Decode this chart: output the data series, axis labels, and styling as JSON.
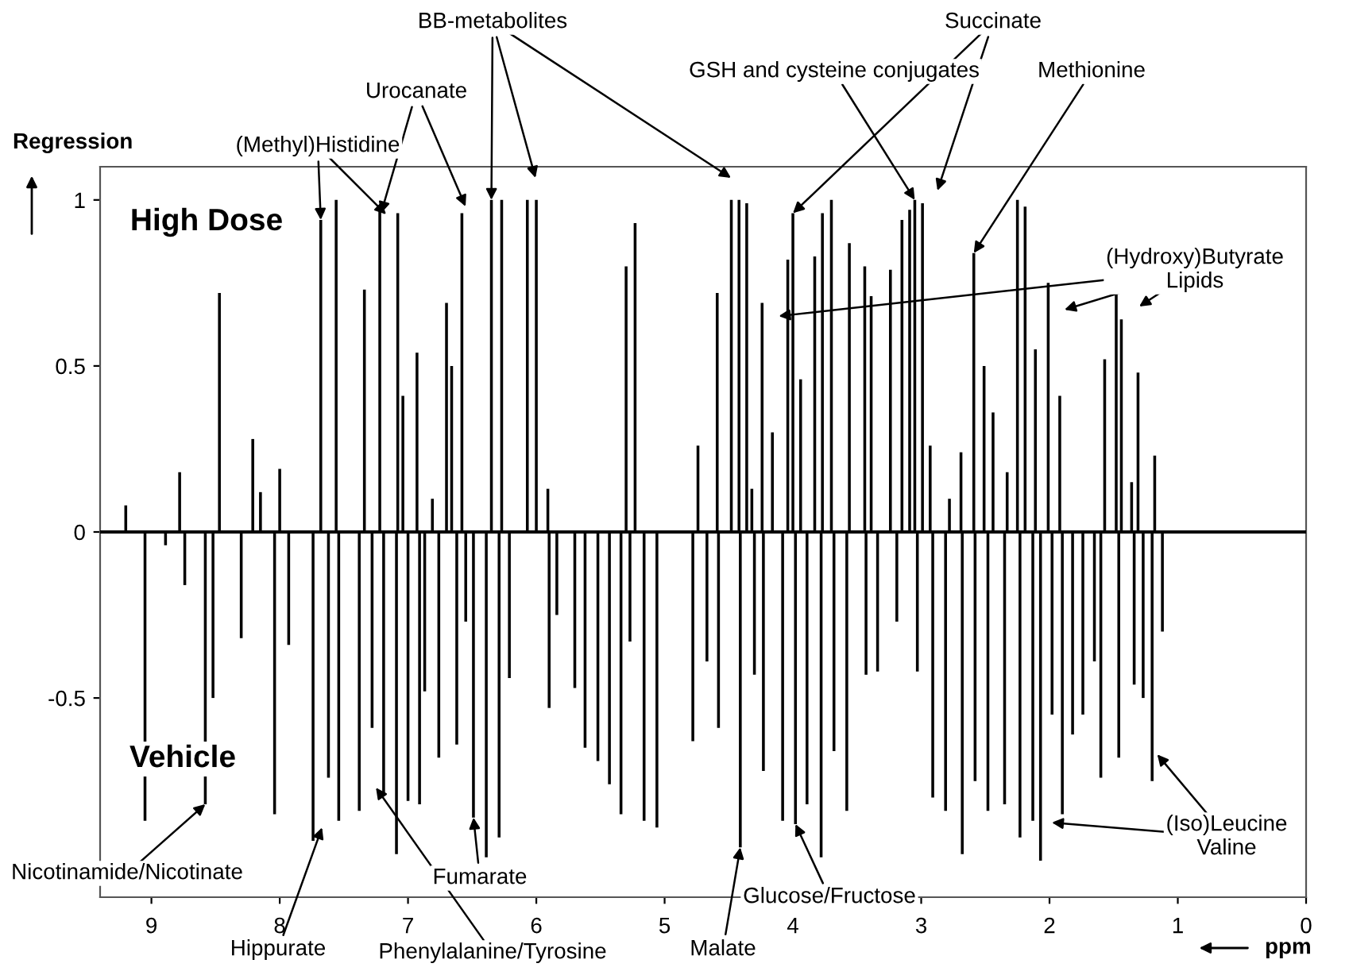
{
  "chart_data": {
    "type": "bar",
    "ylabel": "Regression",
    "xlabel": "ppm",
    "annotations": [
      {
        "text": "BB-metabolites",
        "x": 6.35,
        "y": 1.0
      },
      {
        "text": "Urocanate",
        "x": 7.21,
        "y": 0.96
      },
      {
        "text": "(Methyl)Histidine",
        "x": 7.68,
        "y": 0.94
      },
      {
        "text": "GSH and cysteine conjugates",
        "x": 3.05,
        "y": 1.0
      },
      {
        "text": "Succinate",
        "x": 4.0,
        "y": 0.96
      },
      {
        "text": "Methionine",
        "x": 2.59,
        "y": 0.84
      },
      {
        "text": "(Hydroxy)Butyrate\nLipids",
        "x": 4.11,
        "y": 0.65
      },
      "High Dose",
      "Vehicle",
      {
        "text": "Nicotinamide/Nicotinate",
        "x": 8.58,
        "y": -0.82
      },
      {
        "text": "Hippurate",
        "x": 7.67,
        "y": -0.89
      },
      {
        "text": "Phenylalanine/Tyrosine",
        "x": 7.25,
        "y": -0.77
      },
      {
        "text": "Fumarate",
        "x": 6.49,
        "y": -0.86
      },
      {
        "text": "Malate",
        "x": 4.41,
        "y": -0.95
      },
      {
        "text": "Glucose/Fructose",
        "x": 3.98,
        "y": -0.88
      },
      {
        "text": "(Iso)Leucine\nValine",
        "x": 1.16,
        "y": -0.67
      }
    ],
    "x": [
      9.2,
      9.05,
      8.89,
      8.78,
      8.74,
      8.58,
      8.52,
      8.47,
      8.3,
      8.21,
      8.15,
      8.04,
      8.0,
      7.93,
      7.74,
      7.68,
      7.62,
      7.56,
      7.54,
      7.38,
      7.34,
      7.28,
      7.22,
      7.19,
      7.09,
      7.08,
      7.04,
      7.0,
      6.93,
      6.91,
      6.87,
      6.81,
      6.76,
      6.7,
      6.66,
      6.62,
      6.58,
      6.55,
      6.49,
      6.39,
      6.35,
      6.29,
      6.27,
      6.21,
      6.07,
      6.0,
      5.91,
      5.9,
      5.84,
      5.7,
      5.62,
      5.52,
      5.43,
      5.34,
      5.3,
      5.27,
      5.23,
      5.16,
      5.06,
      4.78,
      4.74,
      4.67,
      4.59,
      4.58,
      4.48,
      4.42,
      4.41,
      4.36,
      4.32,
      4.3,
      4.24,
      4.23,
      4.16,
      4.08,
      4.04,
      4.0,
      3.98,
      3.94,
      3.89,
      3.83,
      3.78,
      3.77,
      3.7,
      3.68,
      3.58,
      3.56,
      3.44,
      3.43,
      3.39,
      3.34,
      3.24,
      3.19,
      3.15,
      3.09,
      3.05,
      3.03,
      2.99,
      2.93,
      2.91,
      2.81,
      2.78,
      2.69,
      2.68,
      2.59,
      2.58,
      2.51,
      2.48,
      2.44,
      2.35,
      2.33,
      2.25,
      2.23,
      2.19,
      2.13,
      2.11,
      2.07,
      2.01,
      1.98,
      1.92,
      1.9,
      1.82,
      1.74,
      1.65,
      1.6,
      1.57,
      1.48,
      1.46,
      1.44,
      1.36,
      1.34,
      1.31,
      1.27,
      1.2,
      1.18,
      1.12
    ],
    "values": [
      0.08,
      -0.87,
      -0.04,
      0.18,
      -0.16,
      -0.82,
      -0.5,
      0.72,
      -0.32,
      0.28,
      0.12,
      -0.85,
      0.19,
      -0.34,
      -0.93,
      0.94,
      -0.74,
      1.0,
      -0.87,
      -0.84,
      0.73,
      -0.59,
      0.97,
      -0.79,
      -0.97,
      0.96,
      0.41,
      -0.81,
      0.54,
      -0.82,
      -0.48,
      0.1,
      -0.68,
      0.69,
      0.5,
      -0.64,
      0.96,
      -0.27,
      -0.86,
      -0.98,
      1.0,
      -0.92,
      1.0,
      -0.44,
      1.0,
      1.0,
      0.13,
      -0.53,
      -0.25,
      -0.47,
      -0.65,
      -0.69,
      -0.76,
      -0.85,
      0.8,
      -0.33,
      0.93,
      -0.87,
      -0.89,
      -0.63,
      0.26,
      -0.39,
      0.72,
      -0.59,
      1.0,
      1.0,
      -0.95,
      0.99,
      0.13,
      -0.43,
      0.69,
      -0.72,
      0.3,
      -0.87,
      0.82,
      0.96,
      -0.88,
      0.46,
      -0.82,
      0.83,
      -0.98,
      0.96,
      1.0,
      -0.66,
      -0.84,
      0.87,
      0.8,
      -0.43,
      0.71,
      -0.42,
      0.79,
      -0.27,
      0.94,
      0.97,
      1.0,
      -0.42,
      0.99,
      0.26,
      -0.8,
      -0.84,
      0.1,
      0.24,
      -0.97,
      0.84,
      -0.75,
      0.5,
      -0.84,
      0.36,
      -0.82,
      0.18,
      1.0,
      -0.92,
      0.98,
      -0.87,
      0.55,
      -0.99,
      0.75,
      -0.55,
      0.41,
      -0.85,
      -0.61,
      -0.55,
      -0.39,
      -0.74,
      0.52,
      0.72,
      -0.68,
      0.64,
      0.15,
      -0.46,
      0.48,
      -0.5,
      -0.75,
      0.23,
      -0.3
    ],
    "color": "#000000",
    "xlim": [
      9.4,
      0
    ],
    "xticks": [
      9,
      8,
      7,
      6,
      5,
      4,
      3,
      2,
      1,
      0
    ],
    "ylim": [
      -1.1,
      1.1
    ],
    "yticks": [
      {
        "value": -0.5,
        "label": "-0.5"
      },
      0,
      0.5,
      1
    ],
    "ref_lines": [
      {
        "axis": "y",
        "value": 0
      }
    ]
  }
}
